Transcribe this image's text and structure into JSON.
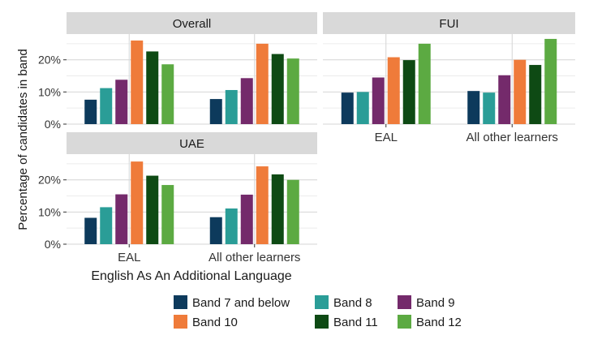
{
  "chart_data": {
    "type": "bar",
    "facet_layout": "2x2 grid, Overall top-left, FUI top-right, UAE bottom-left",
    "ylabel": "Percentage of candidates in band",
    "xlabel": "English As An Additional Language",
    "y_ticks": [
      "0%",
      "10%",
      "20%"
    ],
    "ylim": [
      0,
      28
    ],
    "grid": true,
    "legend_position": "bottom",
    "categories": [
      "EAL",
      "All other learners"
    ],
    "bands": [
      {
        "name": "Band 7 and below",
        "color": "#0d3a5c"
      },
      {
        "name": "Band 8",
        "color": "#2a9d97"
      },
      {
        "name": "Band 9",
        "color": "#742a6b"
      },
      {
        "name": "Band 10",
        "color": "#ef7b3a"
      },
      {
        "name": "Band 11",
        "color": "#0e4a14"
      },
      {
        "name": "Band 12",
        "color": "#5caa42"
      }
    ],
    "panels": [
      {
        "title": "Overall",
        "values": [
          [
            7.6,
            11.2,
            13.8,
            26.0,
            22.6,
            18.6
          ],
          [
            7.8,
            10.6,
            14.3,
            25.0,
            21.8,
            20.4
          ]
        ]
      },
      {
        "title": "FUI",
        "values": [
          [
            9.8,
            10.0,
            14.5,
            20.8,
            19.9,
            25.0
          ],
          [
            10.3,
            9.8,
            15.2,
            20.0,
            18.4,
            26.5
          ]
        ]
      },
      {
        "title": "UAE",
        "values": [
          [
            8.2,
            11.5,
            15.5,
            25.7,
            21.3,
            18.4
          ],
          [
            8.4,
            11.1,
            15.4,
            24.2,
            21.7,
            20.0
          ]
        ]
      }
    ]
  }
}
